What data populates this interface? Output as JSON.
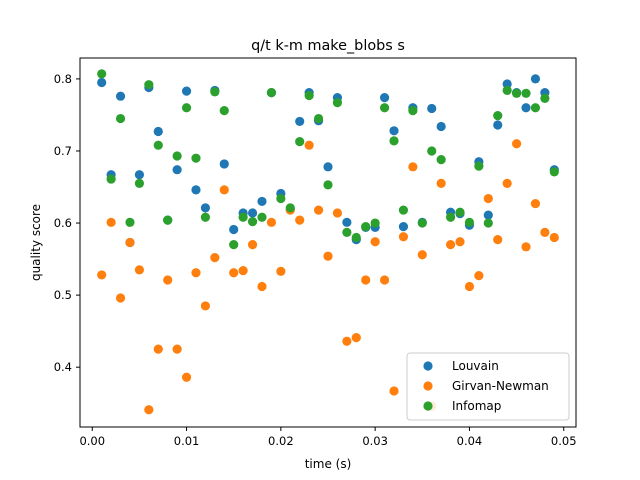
{
  "chart_data": {
    "type": "scatter",
    "title": "q/t k-m make_blobs s",
    "xlabel": "time (s)",
    "ylabel": "quality score",
    "xlim": [
      -0.0013,
      0.0513
    ],
    "ylim": [
      0.317,
      0.829
    ],
    "xticks": [
      0.0,
      0.01,
      0.02,
      0.03,
      0.04,
      0.05
    ],
    "xtick_labels": [
      "0.00",
      "0.01",
      "0.02",
      "0.03",
      "0.04",
      "0.05"
    ],
    "yticks": [
      0.4,
      0.5,
      0.6,
      0.7,
      0.8
    ],
    "ytick_labels": [
      "0.4",
      "0.5",
      "0.6",
      "0.7",
      "0.8"
    ],
    "grid": false,
    "legend_position": "lower-right",
    "series": [
      {
        "name": "Louvain",
        "color": "#1f77b4",
        "x": [
          0.001,
          0.002,
          0.003,
          0.004,
          0.005,
          0.006,
          0.007,
          0.008,
          0.009,
          0.01,
          0.011,
          0.012,
          0.013,
          0.014,
          0.015,
          0.016,
          0.017,
          0.018,
          0.019,
          0.02,
          0.021,
          0.022,
          0.023,
          0.024,
          0.025,
          0.026,
          0.027,
          0.028,
          0.029,
          0.03,
          0.031,
          0.032,
          0.033,
          0.034,
          0.035,
          0.036,
          0.037,
          0.038,
          0.039,
          0.04,
          0.041,
          0.042,
          0.043,
          0.044,
          0.045,
          0.046,
          0.047,
          0.048,
          0.049
        ],
        "y": [
          0.795,
          0.667,
          0.776,
          0.573,
          0.667,
          0.788,
          0.727,
          0.604,
          0.674,
          0.783,
          0.646,
          0.621,
          0.784,
          0.682,
          0.591,
          0.614,
          0.614,
          0.63,
          0.781,
          0.641,
          0.619,
          0.741,
          0.781,
          0.742,
          0.678,
          0.774,
          0.601,
          0.577,
          0.594,
          0.594,
          0.774,
          0.728,
          0.595,
          0.76,
          0.601,
          0.759,
          0.734,
          0.615,
          0.613,
          0.597,
          0.685,
          0.611,
          0.736,
          0.793,
          0.781,
          0.76,
          0.8,
          0.781,
          0.674
        ]
      },
      {
        "name": "Girvan-Newman",
        "color": "#ff7f0e",
        "x": [
          0.001,
          0.002,
          0.003,
          0.004,
          0.005,
          0.006,
          0.007,
          0.008,
          0.009,
          0.01,
          0.011,
          0.012,
          0.013,
          0.014,
          0.015,
          0.016,
          0.017,
          0.018,
          0.019,
          0.02,
          0.021,
          0.022,
          0.023,
          0.024,
          0.025,
          0.026,
          0.027,
          0.028,
          0.029,
          0.03,
          0.031,
          0.032,
          0.033,
          0.034,
          0.035,
          0.036,
          0.037,
          0.038,
          0.039,
          0.04,
          0.041,
          0.042,
          0.043,
          0.044,
          0.045,
          0.046,
          0.047,
          0.048,
          0.049
        ],
        "y": [
          0.528,
          0.601,
          0.496,
          0.573,
          0.535,
          0.341,
          0.425,
          0.521,
          0.425,
          0.386,
          0.531,
          0.485,
          0.552,
          0.646,
          0.531,
          0.534,
          0.57,
          0.512,
          0.601,
          0.533,
          0.618,
          0.604,
          0.708,
          0.618,
          0.554,
          0.614,
          0.436,
          0.441,
          0.521,
          0.574,
          0.521,
          0.367,
          0.581,
          0.678,
          0.556,
          0.346,
          0.655,
          0.57,
          0.574,
          0.512,
          0.527,
          0.634,
          0.577,
          0.655,
          0.71,
          0.567,
          0.627,
          0.587,
          0.58
        ]
      },
      {
        "name": "Infomap",
        "color": "#2ca02c",
        "x": [
          0.001,
          0.002,
          0.003,
          0.004,
          0.005,
          0.006,
          0.007,
          0.008,
          0.009,
          0.01,
          0.011,
          0.012,
          0.013,
          0.014,
          0.015,
          0.016,
          0.017,
          0.018,
          0.019,
          0.02,
          0.021,
          0.022,
          0.023,
          0.024,
          0.025,
          0.026,
          0.027,
          0.028,
          0.029,
          0.03,
          0.031,
          0.032,
          0.033,
          0.034,
          0.035,
          0.036,
          0.037,
          0.038,
          0.039,
          0.04,
          0.041,
          0.042,
          0.043,
          0.044,
          0.045,
          0.046,
          0.047,
          0.048,
          0.049
        ],
        "y": [
          0.807,
          0.661,
          0.745,
          0.601,
          0.655,
          0.792,
          0.708,
          0.604,
          0.693,
          0.76,
          0.69,
          0.608,
          0.782,
          0.756,
          0.57,
          0.608,
          0.602,
          0.608,
          0.781,
          0.634,
          0.621,
          0.713,
          0.777,
          0.745,
          0.653,
          0.767,
          0.587,
          0.58,
          0.595,
          0.6,
          0.76,
          0.714,
          0.618,
          0.756,
          0.6,
          0.7,
          0.688,
          0.608,
          0.615,
          0.601,
          0.679,
          0.6,
          0.749,
          0.784,
          0.78,
          0.78,
          0.76,
          0.773,
          0.671
        ]
      }
    ]
  }
}
